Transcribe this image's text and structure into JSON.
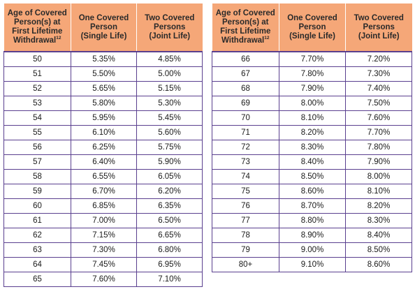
{
  "headers": {
    "age_lines": [
      "Age of Covered",
      "Person(s) at",
      "First Lifetime",
      "Withdrawal"
    ],
    "age_footnote": "12",
    "single_lines": [
      "One Covered",
      "Person",
      "(Single Life)"
    ],
    "joint_lines": [
      "Two Covered",
      "Persons",
      "(Joint Life)"
    ]
  },
  "left_rows": [
    {
      "age": "50",
      "single": "5.35%",
      "joint": "4.85%"
    },
    {
      "age": "51",
      "single": "5.50%",
      "joint": "5.00%"
    },
    {
      "age": "52",
      "single": "5.65%",
      "joint": "5.15%"
    },
    {
      "age": "53",
      "single": "5.80%",
      "joint": "5.30%"
    },
    {
      "age": "54",
      "single": "5.95%",
      "joint": "5.45%"
    },
    {
      "age": "55",
      "single": "6.10%",
      "joint": "5.60%"
    },
    {
      "age": "56",
      "single": "6.25%",
      "joint": "5.75%"
    },
    {
      "age": "57",
      "single": "6.40%",
      "joint": "5.90%"
    },
    {
      "age": "58",
      "single": "6.55%",
      "joint": "6.05%"
    },
    {
      "age": "59",
      "single": "6.70%",
      "joint": "6.20%"
    },
    {
      "age": "60",
      "single": "6.85%",
      "joint": "6.35%"
    },
    {
      "age": "61",
      "single": "7.00%",
      "joint": "6.50%"
    },
    {
      "age": "62",
      "single": "7.15%",
      "joint": "6.65%"
    },
    {
      "age": "63",
      "single": "7.30%",
      "joint": "6.80%"
    },
    {
      "age": "64",
      "single": "7.45%",
      "joint": "6.95%"
    },
    {
      "age": "65",
      "single": "7.60%",
      "joint": "7.10%"
    }
  ],
  "right_rows": [
    {
      "age": "66",
      "single": "7.70%",
      "joint": "7.20%"
    },
    {
      "age": "67",
      "single": "7.80%",
      "joint": "7.30%"
    },
    {
      "age": "68",
      "single": "7.90%",
      "joint": "7.40%"
    },
    {
      "age": "69",
      "single": "8.00%",
      "joint": "7.50%"
    },
    {
      "age": "70",
      "single": "8.10%",
      "joint": "7.60%"
    },
    {
      "age": "71",
      "single": "8.20%",
      "joint": "7.70%"
    },
    {
      "age": "72",
      "single": "8.30%",
      "joint": "7.80%"
    },
    {
      "age": "73",
      "single": "8.40%",
      "joint": "7.90%"
    },
    {
      "age": "74",
      "single": "8.50%",
      "joint": "8.00%"
    },
    {
      "age": "75",
      "single": "8.60%",
      "joint": "8.10%"
    },
    {
      "age": "76",
      "single": "8.70%",
      "joint": "8.20%"
    },
    {
      "age": "77",
      "single": "8.80%",
      "joint": "8.30%"
    },
    {
      "age": "78",
      "single": "8.90%",
      "joint": "8.40%"
    },
    {
      "age": "79",
      "single": "9.00%",
      "joint": "8.50%"
    },
    {
      "age": "80+",
      "single": "9.10%",
      "joint": "8.60%"
    }
  ],
  "colors": {
    "header_bg": "#f5a778",
    "border": "#5a3f8f"
  }
}
